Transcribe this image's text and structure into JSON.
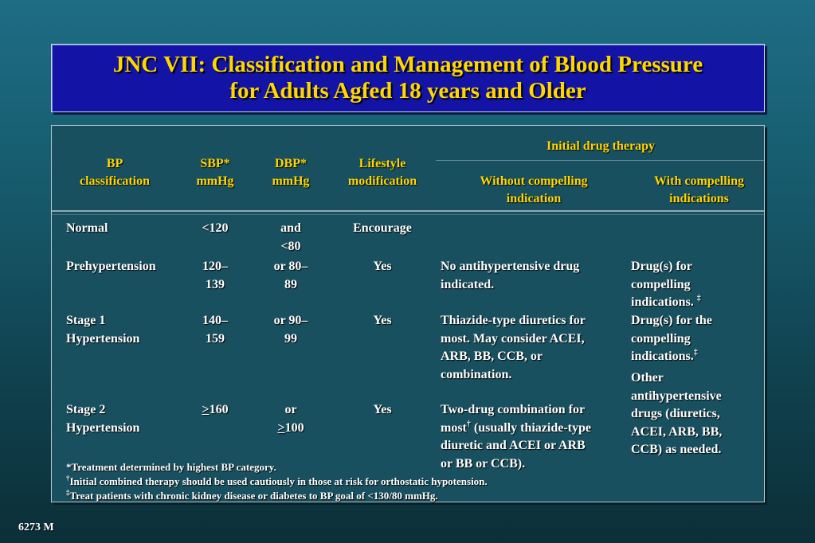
{
  "title": {
    "line1": "JNC VII: Classification and Management of Blood Pressure",
    "line2": "for Adults Agfed 18 years and Older"
  },
  "headers": {
    "bp_class_1": "BP",
    "bp_class_2": "classification",
    "sbp_1": "SBP*",
    "sbp_2": "mmHg",
    "dbp_1": "DBP*",
    "dbp_2": "mmHg",
    "lifestyle_1": "Lifestyle",
    "lifestyle_2": "modification",
    "initial_drug": "Initial drug therapy",
    "without_1": "Without compelling",
    "without_2": "indication",
    "with_1": "With compelling",
    "with_2": "indications"
  },
  "rows": [
    {
      "classification": [
        "Normal"
      ],
      "sbp": [
        "<120"
      ],
      "dbp": [
        "and",
        "<80"
      ],
      "lifestyle": "Encourage",
      "without": [],
      "with": []
    },
    {
      "classification": [
        "Prehypertension"
      ],
      "sbp": [
        "120–",
        "139"
      ],
      "dbp": [
        "or 80–",
        "89"
      ],
      "lifestyle": "Yes",
      "without": [
        "No antihypertensive drug",
        "indicated."
      ],
      "with": [
        "Drug(s) for",
        "compelling",
        "indications."
      ]
    },
    {
      "classification": [
        "Stage 1",
        "Hypertension"
      ],
      "sbp": [
        "140–",
        "159"
      ],
      "dbp": [
        "or 90–",
        "99"
      ],
      "lifestyle": "Yes",
      "without": [
        "Thiazide-type diuretics for",
        "most.  May consider ACEI,",
        "ARB, BB, CCB, or",
        "combination."
      ],
      "with": [
        "Drug(s) for the",
        "compelling",
        "indications."
      ]
    },
    {
      "classification": [
        "Stage 2",
        "Hypertension"
      ],
      "sbp_prefix": ">",
      "sbp": [
        "160"
      ],
      "dbp": [
        "or"
      ],
      "dbp_prefix": ">",
      "dbp_value": "100",
      "lifestyle": "Yes",
      "without": [
        "Two-drug combination for",
        "most",
        "(usually thiazide-type",
        "diuretic and ACEI or ARB",
        "or BB or CCB)."
      ],
      "with": []
    }
  ],
  "other_drugs": [
    "Other",
    "antihypertensive",
    "drugs (diuretics,",
    "ACEI, ARB, BB,",
    "CCB) as needed."
  ],
  "marks": {
    "dagger": "†",
    "double_dagger": "‡"
  },
  "footnotes": {
    "f1": "*Treatment determined by highest BP category.",
    "f2": "Initial combined therapy should be used cautiously in those at risk for orthostatic hypotension.",
    "f3": "Treat patients with chronic kidney disease or diabetes to BP goal of <130/80 mmHg."
  },
  "slide_number": "6273 M"
}
